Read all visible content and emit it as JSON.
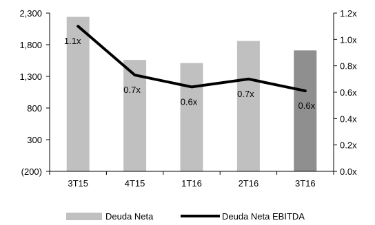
{
  "chart_data": {
    "type": "bar",
    "categories": [
      "3T15",
      "4T15",
      "1T16",
      "2T16",
      "3T16"
    ],
    "series": [
      {
        "name": "Deuda Neta",
        "type": "bar",
        "axis": "left",
        "values": [
          2240,
          1560,
          1510,
          1860,
          1710
        ],
        "colors": [
          "#c0c0c0",
          "#c0c0c0",
          "#c0c0c0",
          "#c0c0c0",
          "#8f8f8f"
        ]
      },
      {
        "name": "Deuda Neta EBITDA",
        "type": "line",
        "axis": "right",
        "values": [
          1.1,
          0.73,
          0.64,
          0.7,
          0.61
        ],
        "labels": [
          "1.1x",
          "0.7x",
          "0.6x",
          "0.7x",
          "0.6x"
        ],
        "color": "#000000"
      }
    ],
    "y_left": {
      "ticks": [
        -200,
        300,
        800,
        1300,
        1800,
        2300
      ],
      "tick_labels": [
        "(200)",
        "300",
        "800",
        "1,300",
        "1,800",
        "2,300"
      ],
      "lim": [
        -200,
        2300
      ]
    },
    "y_right": {
      "ticks": [
        0,
        0.2,
        0.4,
        0.6,
        0.8,
        1.0,
        1.2
      ],
      "tick_labels": [
        "0.0x",
        "0.2x",
        "0.4x",
        "0.6x",
        "0.8x",
        "1.0x",
        "1.2x"
      ],
      "lim": [
        0,
        1.2
      ]
    },
    "grid": false,
    "legend": {
      "position": "bottom",
      "entries": [
        "Deuda Neta",
        "Deuda Neta EBITDA"
      ]
    }
  }
}
